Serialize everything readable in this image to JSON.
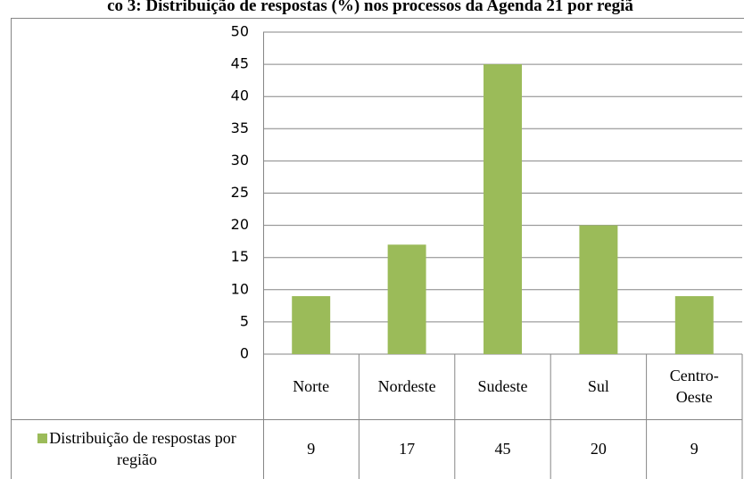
{
  "chart_data": {
    "type": "bar",
    "title": "co 3: Distribuição de respostas (%) nos processos da Agenda 21 por regiã",
    "categories": [
      "Norte",
      "Nordeste",
      "Sudeste",
      "Sul",
      "Centro-Oeste"
    ],
    "series": [
      {
        "name": "Distribuição de respostas por região",
        "color": "#9bbb59",
        "values": [
          9,
          17,
          45,
          20,
          9
        ]
      }
    ],
    "ylim": [
      0,
      50
    ],
    "yticks": [
      0,
      5,
      10,
      15,
      20,
      25,
      30,
      35,
      40,
      45,
      50
    ],
    "grid": true
  }
}
